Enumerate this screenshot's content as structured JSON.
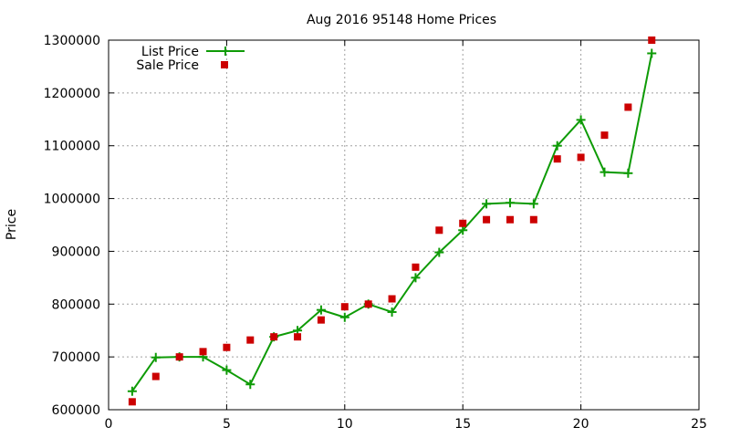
{
  "chart_data": {
    "type": "line",
    "title": "Aug 2016 95148 Home Prices",
    "xlabel": "",
    "ylabel": "Price",
    "xlim": [
      0,
      25
    ],
    "ylim": [
      600000,
      1300000
    ],
    "x_ticks": [
      0,
      5,
      10,
      15,
      20,
      25
    ],
    "y_ticks": [
      600000,
      700000,
      800000,
      900000,
      1000000,
      1100000,
      1200000,
      1300000
    ],
    "grid": true,
    "legend_position": "top-left",
    "x": [
      1,
      2,
      3,
      4,
      5,
      6,
      7,
      8,
      9,
      10,
      11,
      12,
      13,
      14,
      15,
      16,
      17,
      18,
      19,
      20,
      21,
      22,
      23
    ],
    "series": [
      {
        "name": "List Price",
        "style": "line-with-plus-markers",
        "color": "#0e9b06",
        "values": [
          635000,
          699000,
          700000,
          700000,
          675000,
          648000,
          738000,
          750000,
          789000,
          775000,
          800000,
          785000,
          850000,
          898000,
          940000,
          990000,
          992000,
          990000,
          1100000,
          1149000,
          1050000,
          1048000,
          1275000
        ]
      },
      {
        "name": "Sale Price",
        "style": "square-markers",
        "color": "#cc0000",
        "values": [
          615000,
          663000,
          700000,
          710000,
          718000,
          732000,
          738000,
          738000,
          770000,
          795000,
          800000,
          810000,
          870000,
          940000,
          953000,
          960000,
          960000,
          960000,
          1075000,
          1078000,
          1120000,
          1173000,
          1300000
        ]
      }
    ]
  }
}
